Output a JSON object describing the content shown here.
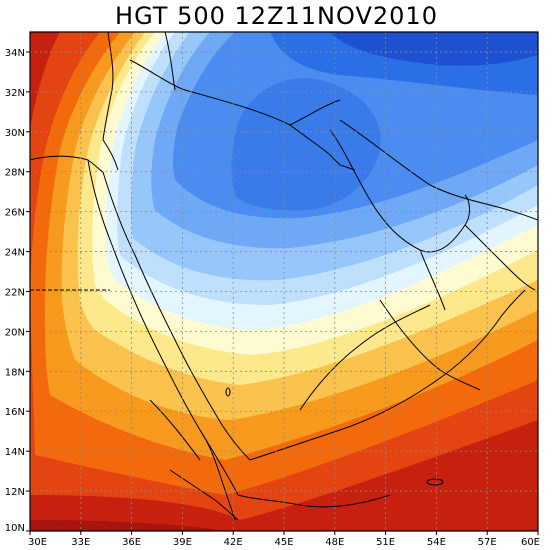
{
  "title": "HGT 500 12Z11NOV2010",
  "axes": {
    "x_ticks": [
      "30E",
      "33E",
      "36E",
      "39E",
      "42E",
      "45E",
      "48E",
      "51E",
      "54E",
      "57E",
      "60E"
    ],
    "y_ticks": [
      "10N",
      "12N",
      "14N",
      "16N",
      "18N",
      "20N",
      "22N",
      "24N",
      "26N",
      "28N",
      "30N",
      "32N",
      "34N"
    ],
    "x_range": [
      30,
      60
    ],
    "y_range": [
      10,
      35
    ]
  },
  "field": {
    "variable": "HGT 500",
    "palette": [
      "#1e50d2",
      "#2b6fe6",
      "#4a8cf0",
      "#6fa9f5",
      "#96c6fa",
      "#bfe0fd",
      "#e3f6ff",
      "#fffbd0",
      "#fde98c",
      "#fcc24e",
      "#f79a1e",
      "#f26a0c",
      "#e34412",
      "#c8200e",
      "#a8140e"
    ]
  },
  "colors": {
    "grid": "#8a8a8a",
    "coast": "#000000",
    "frame": "#000000"
  }
}
